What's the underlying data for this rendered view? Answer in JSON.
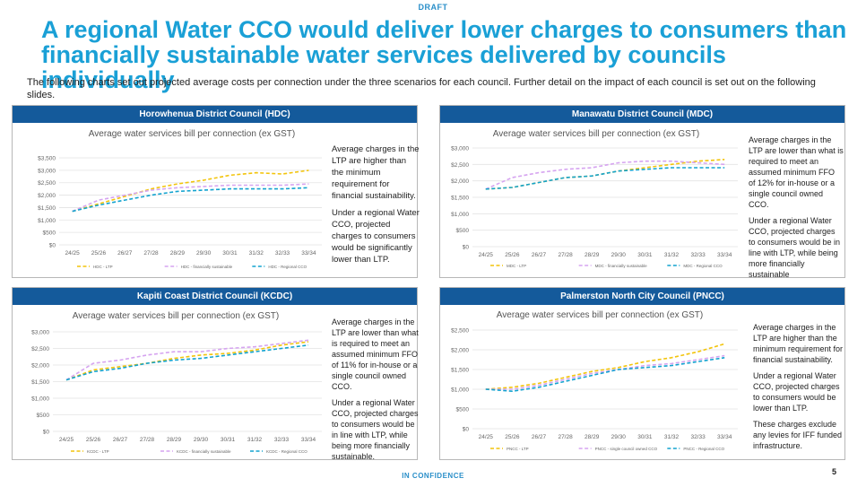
{
  "header": {
    "draft_label": "DRAFT",
    "title": "A regional Water CCO would deliver lower charges to consumers than financially sustainable water services delivered by councils individually",
    "intro": "The following charts set out projected average costs per connection under the three scenarios for each council. Further detail on the impact of each council is set out on the following slides."
  },
  "footer": {
    "confidence_label": "IN CONFIDENCE",
    "page_number": "5"
  },
  "panels": [
    {
      "header": "Horowhenua District Council (HDC)",
      "notes": [
        "Average charges in the LTP are higher than the minimum requirement for financial sustainability.",
        "Under a regional Water CCO, projected charges to consumers would be significantly lower than LTP."
      ]
    },
    {
      "header": "Manawatu District Council (MDC)",
      "notes": [
        "Average charges in the LTP are lower than what is required to meet an assumed minimum FFO of 12% for in-house or a single council owned CCO.",
        "Under a regional Water CCO, projected charges to consumers would be in line with LTP, while being more financially sustainable"
      ]
    },
    {
      "header": "Kapiti Coast District Council (KCDC)",
      "notes": [
        "Average charges in the LTP are lower than what is required to meet an assumed minimum FFO of 11% for in-house or a single council owned CCO.",
        "Under a regional Water CCO, projected charges to consumers would be in line with LTP, while being more financially sustainable."
      ]
    },
    {
      "header": "Palmerston North City Council (PNCC)",
      "notes": [
        "Average charges in the LTP are higher than the minimum requirement for financial sustainability.",
        "Under a regional Water CCO, projected charges to consumers would be lower than LTP.",
        "These charges exclude any levies for IFF funded infrastructure."
      ]
    }
  ],
  "colors": {
    "ltp": "#f2c40c",
    "sustainable": "#d6a4f0",
    "regional": "#13a3cf",
    "header_bg": "#145a9b",
    "title": "#1aa0d6"
  },
  "chart_data": [
    {
      "type": "line",
      "title": "Average water services bill per connection (ex GST)",
      "categories": [
        "24/25",
        "25/26",
        "26/27",
        "27/28",
        "28/29",
        "29/30",
        "30/31",
        "31/32",
        "32/33",
        "33/34"
      ],
      "ylim": [
        0,
        3500
      ],
      "yticks": [
        0,
        500,
        1000,
        1500,
        2000,
        2500,
        3000,
        3500
      ],
      "ytick_labels": [
        "$0",
        "$500",
        "$1,000",
        "$1,500",
        "$2,000",
        "$2,500",
        "$3,000",
        "$3,500"
      ],
      "grid": true,
      "legend": "bottom",
      "series": [
        {
          "name": "HDC - LTP",
          "color_key": "ltp",
          "values": [
            1350,
            1650,
            1950,
            2250,
            2450,
            2600,
            2800,
            2900,
            2850,
            3000
          ]
        },
        {
          "name": "HDC - financially sustainable",
          "color_key": "sustainable",
          "values": [
            1350,
            1800,
            2000,
            2200,
            2300,
            2350,
            2400,
            2400,
            2400,
            2450
          ]
        },
        {
          "name": "HDC - Regional CCO",
          "color_key": "regional",
          "values": [
            1350,
            1600,
            1800,
            2000,
            2150,
            2200,
            2250,
            2250,
            2250,
            2300
          ]
        }
      ]
    },
    {
      "type": "line",
      "title": "Average water services bill per connection (ex GST)",
      "categories": [
        "24/25",
        "25/26",
        "26/27",
        "27/28",
        "28/29",
        "29/30",
        "30/31",
        "31/32",
        "32/33",
        "33/34"
      ],
      "ylim": [
        0,
        3000
      ],
      "yticks": [
        0,
        500,
        1000,
        1500,
        2000,
        2500,
        3000
      ],
      "ytick_labels": [
        "$0",
        "$500",
        "$1,000",
        "$1,500",
        "$2,000",
        "$2,500",
        "$3,000"
      ],
      "grid": true,
      "legend": "bottom",
      "series": [
        {
          "name": "MDC - LTP",
          "color_key": "ltp",
          "values": [
            1750,
            1800,
            1950,
            2100,
            2150,
            2300,
            2400,
            2500,
            2600,
            2650
          ]
        },
        {
          "name": "MDC - financially sustainable",
          "color_key": "sustainable",
          "values": [
            1750,
            2100,
            2250,
            2350,
            2400,
            2550,
            2600,
            2600,
            2550,
            2500
          ]
        },
        {
          "name": "MDC - Regional CCO",
          "color_key": "regional",
          "values": [
            1750,
            1800,
            1950,
            2100,
            2150,
            2300,
            2350,
            2400,
            2400,
            2400
          ]
        }
      ]
    },
    {
      "type": "line",
      "title": "Average water services bill per connection (ex GST)",
      "categories": [
        "24/25",
        "25/26",
        "26/27",
        "27/28",
        "28/29",
        "29/30",
        "30/31",
        "31/32",
        "32/33",
        "33/34"
      ],
      "ylim": [
        0,
        3000
      ],
      "yticks": [
        0,
        500,
        1000,
        1500,
        2000,
        2500,
        3000
      ],
      "ytick_labels": [
        "$0",
        "$500",
        "$1,000",
        "$1,500",
        "$2,000",
        "$2,500",
        "$3,000"
      ],
      "grid": true,
      "legend": "bottom",
      "series": [
        {
          "name": "KCDC - LTP",
          "color_key": "ltp",
          "values": [
            1550,
            1850,
            1950,
            2050,
            2200,
            2300,
            2350,
            2450,
            2600,
            2700
          ]
        },
        {
          "name": "KCDC - financially sustainable",
          "color_key": "sustainable",
          "values": [
            1550,
            2050,
            2150,
            2300,
            2400,
            2400,
            2500,
            2550,
            2650,
            2750
          ]
        },
        {
          "name": "KCDC - Regional CCO",
          "color_key": "regional",
          "values": [
            1550,
            1800,
            1900,
            2050,
            2150,
            2200,
            2300,
            2400,
            2500,
            2600
          ]
        }
      ]
    },
    {
      "type": "line",
      "title": "Average water services bill per connection (ex GST)",
      "categories": [
        "24/25",
        "25/26",
        "26/27",
        "27/28",
        "28/29",
        "29/30",
        "30/31",
        "31/32",
        "32/33",
        "33/34"
      ],
      "ylim": [
        0,
        2500
      ],
      "yticks": [
        0,
        500,
        1000,
        1500,
        2000,
        2500
      ],
      "ytick_labels": [
        "$0",
        "$500",
        "$1,000",
        "$1,500",
        "$2,000",
        "$2,500"
      ],
      "grid": true,
      "legend": "bottom",
      "series": [
        {
          "name": "PNCC - LTP",
          "color_key": "ltp",
          "values": [
            1000,
            1050,
            1150,
            1300,
            1450,
            1550,
            1700,
            1800,
            1950,
            2150
          ]
        },
        {
          "name": "PNCC - single council owned CCO",
          "color_key": "sustainable",
          "values": [
            1000,
            1000,
            1100,
            1250,
            1400,
            1500,
            1600,
            1650,
            1750,
            1850
          ]
        },
        {
          "name": "PNCC - Regional CCO",
          "color_key": "regional",
          "values": [
            1000,
            950,
            1050,
            1200,
            1350,
            1500,
            1550,
            1600,
            1700,
            1800
          ]
        }
      ]
    }
  ]
}
